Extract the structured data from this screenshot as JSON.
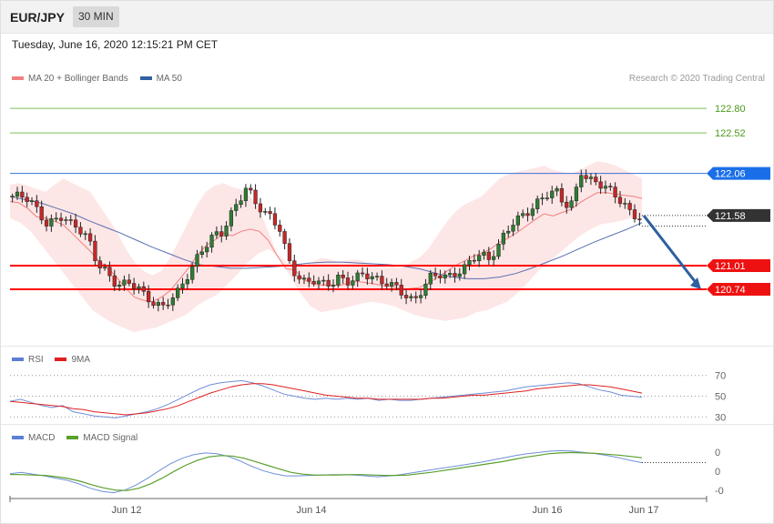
{
  "header": {
    "pair": "EUR/JPY",
    "timeframe": "30 MIN"
  },
  "timestamp": "Tuesday, June 16, 2020 12:15:21 PM CET",
  "credit": "Research © 2020 Trading Central",
  "colors": {
    "up": "#2e7d32",
    "down": "#c62828",
    "ma20": "#f08080",
    "bands": "#fde0e0",
    "ma50": "#5a6fb0",
    "support": "#ff0000",
    "pivot": "#3a6fd8",
    "target_line": "#7cbf5b",
    "arrow": "#2f5fa0",
    "rsi": "#6f8fd8",
    "rsi_ma": "#e02020",
    "macd": "#6f8fd8",
    "macd_signal": "#5aa02c"
  },
  "legends": {
    "price": [
      {
        "label": "MA 20 + Bollinger Bands",
        "color": "#f08080"
      },
      {
        "label": "MA 50",
        "color": "#2f5fa0"
      }
    ],
    "rsi": [
      {
        "label": "RSI",
        "color": "#5b7fd8"
      },
      {
        "label": "9MA",
        "color": "#e02020"
      }
    ],
    "macd": [
      {
        "label": "MACD",
        "color": "#5b7fd8"
      },
      {
        "label": "MACD Signal",
        "color": "#5aa02c"
      }
    ]
  },
  "chart_data": [
    {
      "type": "candlestick",
      "title": "EUR/JPY",
      "x_labels": [
        "Jun 12",
        "Jun 14",
        "Jun 16",
        "Jun 17"
      ],
      "ylim": [
        120.15,
        123.05
      ],
      "levels": [
        {
          "label": "122.80",
          "value": 122.8,
          "kind": "target"
        },
        {
          "label": "122.52",
          "value": 122.52,
          "kind": "target"
        },
        {
          "label": "122.06",
          "value": 122.06,
          "kind": "pivot"
        },
        {
          "label": "121.58",
          "value": 121.58,
          "kind": "last"
        },
        {
          "label": "121.01",
          "value": 121.01,
          "kind": "support"
        },
        {
          "label": "120.74",
          "value": 120.74,
          "kind": "support"
        }
      ],
      "close_path": [
        121.8,
        121.78,
        121.74,
        121.62,
        121.5,
        121.55,
        121.6,
        121.48,
        121.4,
        121.3,
        121.05,
        120.98,
        120.85,
        120.82,
        120.8,
        120.75,
        120.6,
        120.58,
        120.55,
        120.68,
        120.75,
        120.9,
        121.05,
        121.2,
        121.35,
        121.4,
        121.6,
        121.75,
        121.9,
        121.7,
        121.6,
        121.55,
        121.45,
        121.1,
        120.9,
        120.8,
        120.82,
        120.78,
        120.8,
        120.9,
        120.85,
        120.88,
        120.9,
        120.85,
        120.8,
        120.82,
        120.78,
        120.7,
        120.6,
        120.72,
        120.85,
        120.9,
        120.88,
        120.95,
        121.0,
        121.1,
        121.12,
        121.05,
        121.2,
        121.4,
        121.55,
        121.6,
        121.65,
        121.72,
        121.8,
        121.85,
        121.72,
        121.75,
        122.1,
        121.98,
        121.92,
        121.88,
        121.8,
        121.75,
        121.62,
        121.58
      ],
      "bollinger_upper": [
        121.93,
        121.95,
        121.92,
        121.88,
        121.85,
        121.93,
        122.0,
        121.95,
        121.9,
        121.85,
        121.7,
        121.55,
        121.4,
        121.2,
        121.05,
        120.95,
        120.9,
        120.95,
        121.1,
        121.3,
        121.5,
        121.7,
        121.85,
        121.92,
        121.95,
        121.9,
        121.88,
        121.8,
        121.65,
        121.4,
        121.15,
        121.05,
        121.02,
        121.0,
        121.05,
        121.1,
        121.08,
        121.05,
        121.07,
        121.08,
        121.05,
        121.0,
        120.98,
        121.0,
        120.98,
        121.05,
        121.1,
        121.2,
        121.35,
        121.5,
        121.62,
        121.7,
        121.75,
        121.8,
        121.9,
        122.0,
        122.05,
        122.08,
        122.1,
        122.12,
        122.15,
        122.1,
        122.08,
        122.05,
        122.1,
        122.15,
        122.2,
        122.18,
        122.15,
        122.1,
        122.05,
        122.0
      ],
      "bollinger_lower": [
        121.55,
        121.5,
        121.4,
        121.25,
        121.1,
        120.95,
        120.8,
        120.65,
        120.5,
        120.42,
        120.35,
        120.3,
        120.25,
        120.28,
        120.3,
        120.35,
        120.4,
        120.45,
        120.55,
        120.62,
        120.68,
        120.8,
        120.92,
        121.05,
        121.15,
        121.2,
        121.1,
        120.9,
        120.7,
        120.55,
        120.48,
        120.5,
        120.52,
        120.55,
        120.58,
        120.6,
        120.58,
        120.55,
        120.5,
        120.45,
        120.42,
        120.4,
        120.38,
        120.4,
        120.42,
        120.48,
        120.5,
        120.55,
        120.6,
        120.7,
        120.82,
        120.95,
        121.05,
        121.15,
        121.25,
        121.35,
        121.42,
        121.48,
        121.5,
        121.52,
        121.55,
        121.55
      ],
      "ma50": [
        121.8,
        121.76,
        121.72,
        121.66,
        121.6,
        121.52,
        121.45,
        121.38,
        121.3,
        121.22,
        121.15,
        121.08,
        121.02,
        121.0,
        120.98,
        120.98,
        120.99,
        121.0,
        121.02,
        121.04,
        121.05,
        121.05,
        121.04,
        121.03,
        121.02,
        121.0,
        120.97,
        120.92,
        120.88,
        120.86,
        120.86,
        120.88,
        120.92,
        120.98,
        121.05,
        121.12,
        121.2,
        121.28,
        121.35,
        121.42,
        121.5
      ]
    },
    {
      "type": "line",
      "title": "RSI",
      "ylim": [
        25,
        75
      ],
      "y_ticks": [
        70,
        50,
        30
      ],
      "series": [
        {
          "name": "RSI",
          "values": [
            45,
            47,
            44,
            41,
            39,
            41,
            35,
            33,
            31,
            30,
            29,
            31,
            33,
            35,
            38,
            42,
            47,
            52,
            57,
            61,
            63,
            64,
            65,
            63,
            60,
            56,
            52,
            50,
            48,
            47,
            48,
            47,
            48,
            47,
            48,
            46,
            47,
            46,
            46,
            47,
            48,
            49,
            50,
            51,
            52,
            53,
            54,
            55,
            57,
            59,
            60,
            61,
            62,
            63,
            62,
            59,
            56,
            54,
            51,
            50,
            49
          ]
        },
        {
          "name": "9MA",
          "values": [
            45,
            44,
            43,
            42,
            41,
            40,
            38,
            37,
            35,
            34,
            33,
            32,
            33,
            34,
            36,
            38,
            41,
            45,
            49,
            53,
            56,
            59,
            61,
            62,
            62,
            61,
            59,
            57,
            55,
            53,
            51,
            50,
            49,
            48,
            48,
            47,
            47,
            47,
            47,
            47,
            48,
            48,
            49,
            50,
            51,
            51,
            52,
            53,
            54,
            55,
            57,
            58,
            59,
            60,
            61,
            61,
            60,
            59,
            57,
            55,
            53
          ]
        }
      ]
    },
    {
      "type": "line",
      "title": "MACD",
      "y_ticks": [
        "0",
        "0",
        "-0"
      ],
      "series": [
        {
          "name": "MACD",
          "values": [
            0.05,
            0.08,
            0.04,
            0.0,
            -0.05,
            -0.1,
            -0.18,
            -0.28,
            -0.35,
            -0.38,
            -0.32,
            -0.2,
            -0.05,
            0.12,
            0.28,
            0.4,
            0.48,
            0.52,
            0.5,
            0.44,
            0.34,
            0.22,
            0.12,
            0.05,
            0.0,
            0.0,
            0.01,
            0.02,
            0.03,
            0.03,
            0.02,
            0.0,
            -0.02,
            0.0,
            0.03,
            0.07,
            0.11,
            0.15,
            0.19,
            0.23,
            0.27,
            0.31,
            0.36,
            0.41,
            0.46,
            0.5,
            0.53,
            0.56,
            0.57,
            0.56,
            0.53,
            0.5,
            0.46,
            0.41,
            0.35,
            0.3
          ]
        },
        {
          "name": "MACD Signal",
          "values": [
            0.03,
            0.03,
            0.02,
            0.01,
            -0.02,
            -0.06,
            -0.12,
            -0.2,
            -0.27,
            -0.32,
            -0.33,
            -0.28,
            -0.18,
            -0.05,
            0.1,
            0.24,
            0.35,
            0.43,
            0.46,
            0.45,
            0.4,
            0.32,
            0.24,
            0.16,
            0.08,
            0.04,
            0.02,
            0.02,
            0.02,
            0.03,
            0.03,
            0.02,
            0.01,
            0.01,
            0.02,
            0.05,
            0.08,
            0.12,
            0.16,
            0.2,
            0.24,
            0.28,
            0.32,
            0.37,
            0.42,
            0.46,
            0.5,
            0.52,
            0.53,
            0.52,
            0.51,
            0.49,
            0.47,
            0.44,
            0.41
          ]
        }
      ]
    }
  ]
}
